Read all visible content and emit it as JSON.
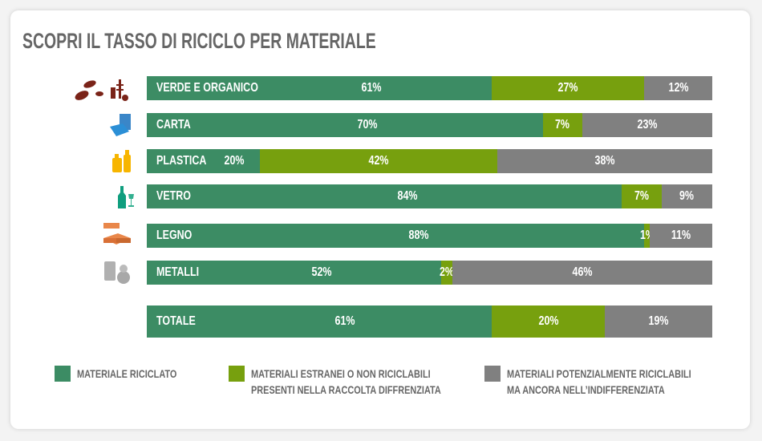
{
  "title": "SCOPRI IL TASSO DI RICICLO PER MATERIALE",
  "colors": {
    "riciclato": "#3c8c64",
    "estranei": "#77a00e",
    "indifferenziata": "#808080"
  },
  "chart_data": {
    "type": "bar",
    "stacked": true,
    "orientation": "horizontal",
    "title": "SCOPRI IL TASSO DI RICICLO PER MATERIALE",
    "categories": [
      "VERDE E ORGANICO",
      "CARTA",
      "PLASTICA",
      "VETRO",
      "LEGNO",
      "METALLI",
      "TOTALE"
    ],
    "series": [
      {
        "name": "MATERIALE RICICLATO",
        "values": [
          61,
          70,
          20,
          84,
          88,
          52,
          61
        ]
      },
      {
        "name": "MATERIALI ESTRANEI O NON RICICLABILI PRESENTI NELLA RACCOLTA DIFFRENZIATA",
        "values": [
          27,
          7,
          42,
          7,
          1,
          2,
          20
        ]
      },
      {
        "name": "MATERIALI POTENZIALMENTE RICICLABILI MA ANCORA NELL'INDIFFERENZIATA",
        "values": [
          12,
          23,
          38,
          9,
          11,
          46,
          19
        ]
      }
    ],
    "xlim": [
      0,
      100
    ],
    "legend": "bottom"
  },
  "icons": [
    "organic-waste-icon",
    "paper-icon",
    "plastic-icon",
    "glass-icon",
    "wood-icon",
    "metal-icon"
  ],
  "legend": [
    {
      "line1": "MATERIALE RICICLATO",
      "line2": ""
    },
    {
      "line1": "MATERIALI ESTRANEI O NON RICICLABILI",
      "line2": "PRESENTI NELLA RACCOLTA DIFFRENZIATA"
    },
    {
      "line1": "MATERIALI POTENZIALMENTE RICICLABILI",
      "line2": "MA ANCORA NELL’INDIFFERENZIATA"
    }
  ]
}
